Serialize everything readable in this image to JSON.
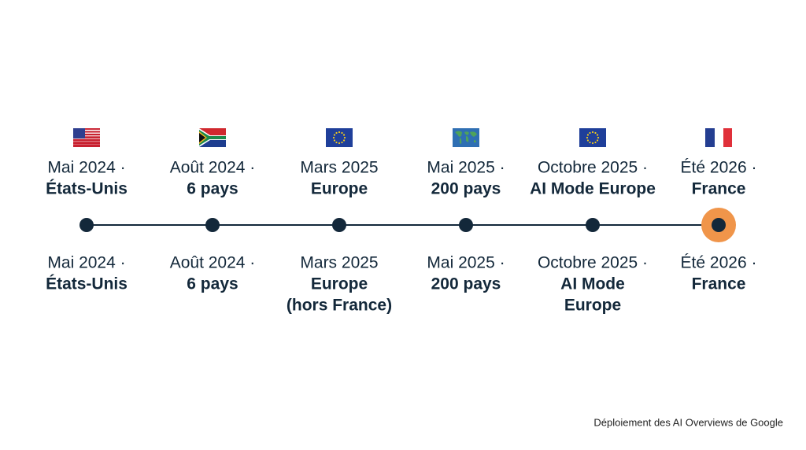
{
  "items": [
    {
      "top": {
        "date": "Mai 2024 ·",
        "place": "États-Unis"
      },
      "bottom": {
        "date": "Mai 2024 ·",
        "place": [
          "États-Unis"
        ]
      }
    },
    {
      "top": {
        "date": "Août 2024 ·",
        "place": "6 pays"
      },
      "bottom": {
        "date": "Août 2024 ·",
        "place": [
          "6 pays"
        ]
      }
    },
    {
      "top": {
        "date": "Mars 2025",
        "place": "Europe"
      },
      "bottom": {
        "date": "Mars 2025",
        "place": [
          "Europe",
          "(hors France)"
        ]
      }
    },
    {
      "top": {
        "date": "Mai 2025 ·",
        "place": "200 pays"
      },
      "bottom": {
        "date": "Mai 2025 ·",
        "place": [
          "200 pays"
        ]
      }
    },
    {
      "top": {
        "date": "Octobre 2025 ·",
        "place": "AI Mode Europe"
      },
      "bottom": {
        "date": "Octobre 2025 ·",
        "place": [
          "AI Mode",
          "Europe"
        ]
      }
    },
    {
      "top": {
        "date": "Été 2026 ·",
        "place": "France"
      },
      "bottom": {
        "date": "Été 2026 ·",
        "place": [
          "France"
        ]
      }
    }
  ],
  "caption": "Déploiement des AI Overviews de Google"
}
